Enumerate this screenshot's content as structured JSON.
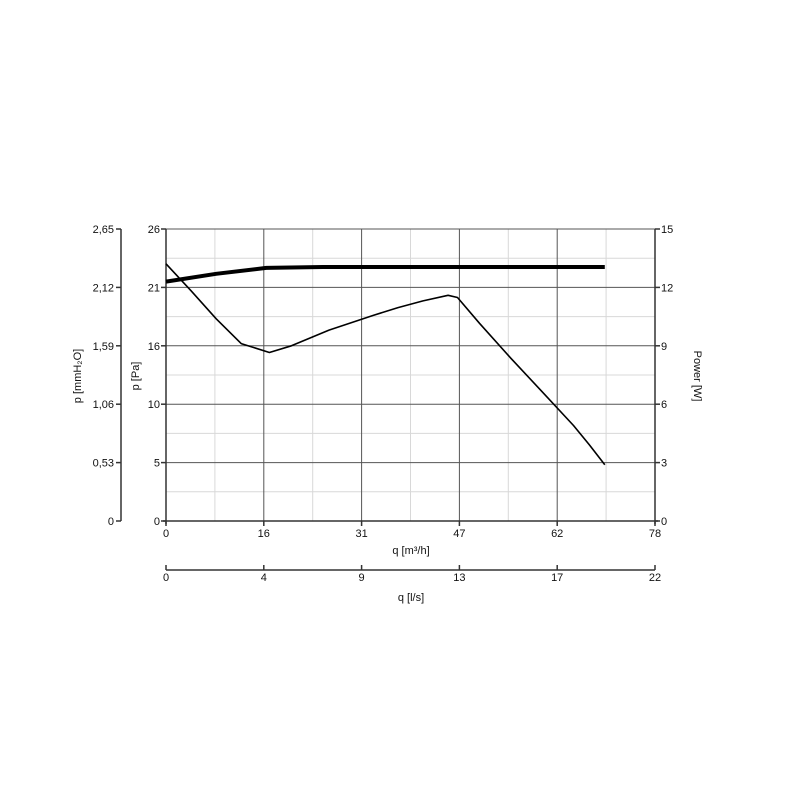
{
  "chart_data": {
    "type": "line",
    "xlabel": "q [m³/h]",
    "xlabel_secondary": "q [l/s]",
    "ylabel_left_outer": "p [mmH₂O]",
    "ylabel_left": "p [Pa]",
    "ylabel_right": "Power [W]",
    "x_ticks": [
      "0",
      "16",
      "31",
      "47",
      "62",
      "78"
    ],
    "x_secondary_ticks": [
      "0",
      "4",
      "9",
      "13",
      "17",
      "22"
    ],
    "y_left_outer_ticks": [
      "0",
      "0,53",
      "1,06",
      "1,59",
      "2,12",
      "2,65"
    ],
    "y_left_ticks": [
      "0",
      "5",
      "10",
      "16",
      "21",
      "26"
    ],
    "y_right_ticks": [
      "0",
      "3",
      "6",
      "9",
      "12",
      "15"
    ],
    "xlim": [
      0,
      78
    ],
    "ylim_pa": [
      0,
      26
    ],
    "ylim_power": [
      0,
      15
    ],
    "grid": true,
    "series": [
      {
        "axis": "left",
        "x": [
          0,
          4,
          8,
          12,
          16.5,
          20,
          26,
          33,
          37,
          41,
          45,
          46.5,
          50,
          55,
          60,
          65,
          67.5,
          70
        ],
        "y": [
          22.9,
          20.5,
          18.0,
          15.8,
          15.0,
          15.6,
          17.0,
          18.3,
          19.0,
          19.6,
          20.1,
          19.9,
          17.6,
          14.5,
          11.5,
          8.5,
          6.8,
          5.0
        ]
      },
      {
        "axis": "right",
        "x": [
          0,
          8,
          16,
          25,
          35,
          50,
          70
        ],
        "y": [
          12.3,
          12.7,
          13.0,
          13.05,
          13.05,
          13.05,
          13.05
        ]
      }
    ]
  }
}
